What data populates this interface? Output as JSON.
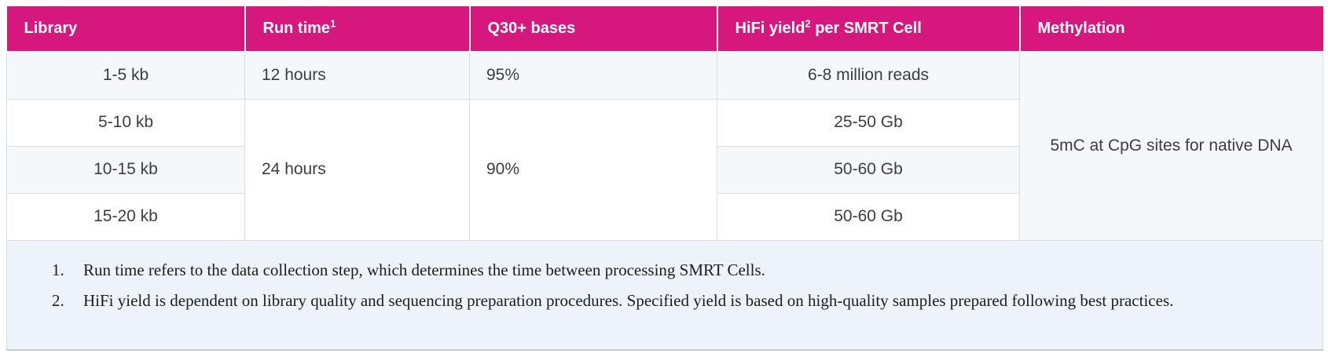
{
  "colors": {
    "header_bg": "#d6177e",
    "header_text": "#ffffff",
    "row_shade_bg": "#f4f8fb",
    "row_white_bg": "#ffffff",
    "footnote_bg": "#edf3f9",
    "grid_border": "#d9dde1",
    "body_text": "#3d3d3d"
  },
  "table": {
    "columns": [
      {
        "pre": "Library",
        "sup": "",
        "post": ""
      },
      {
        "pre": "Run time",
        "sup": "1",
        "post": ""
      },
      {
        "pre": "Q30+ bases",
        "sup": "",
        "post": ""
      },
      {
        "pre": "HiFi yield",
        "sup": "2",
        "post": " per SMRT Cell"
      },
      {
        "pre": "Methylation",
        "sup": "",
        "post": ""
      }
    ],
    "rows": [
      {
        "library": "1-5 kb",
        "run_time": "12 hours",
        "q30": "95%",
        "hifi_yield": "6-8 million reads"
      },
      {
        "library": "5-10 kb",
        "run_time": "24 hours",
        "q30": "90%",
        "hifi_yield": "25-50 Gb"
      },
      {
        "library": "10-15 kb",
        "hifi_yield": "50-60 Gb"
      },
      {
        "library": "15-20 kb",
        "hifi_yield": "50-60 Gb"
      }
    ],
    "methylation": "5mC at CpG sites for native DNA"
  },
  "footnotes": [
    {
      "number": "1.",
      "text": "Run time refers to the data collection step, which determines the time between processing SMRT Cells."
    },
    {
      "number": "2.",
      "text": "HiFi yield is dependent on library quality and sequencing preparation procedures. Specified yield is based on high-quality samples prepared following best practices."
    }
  ]
}
